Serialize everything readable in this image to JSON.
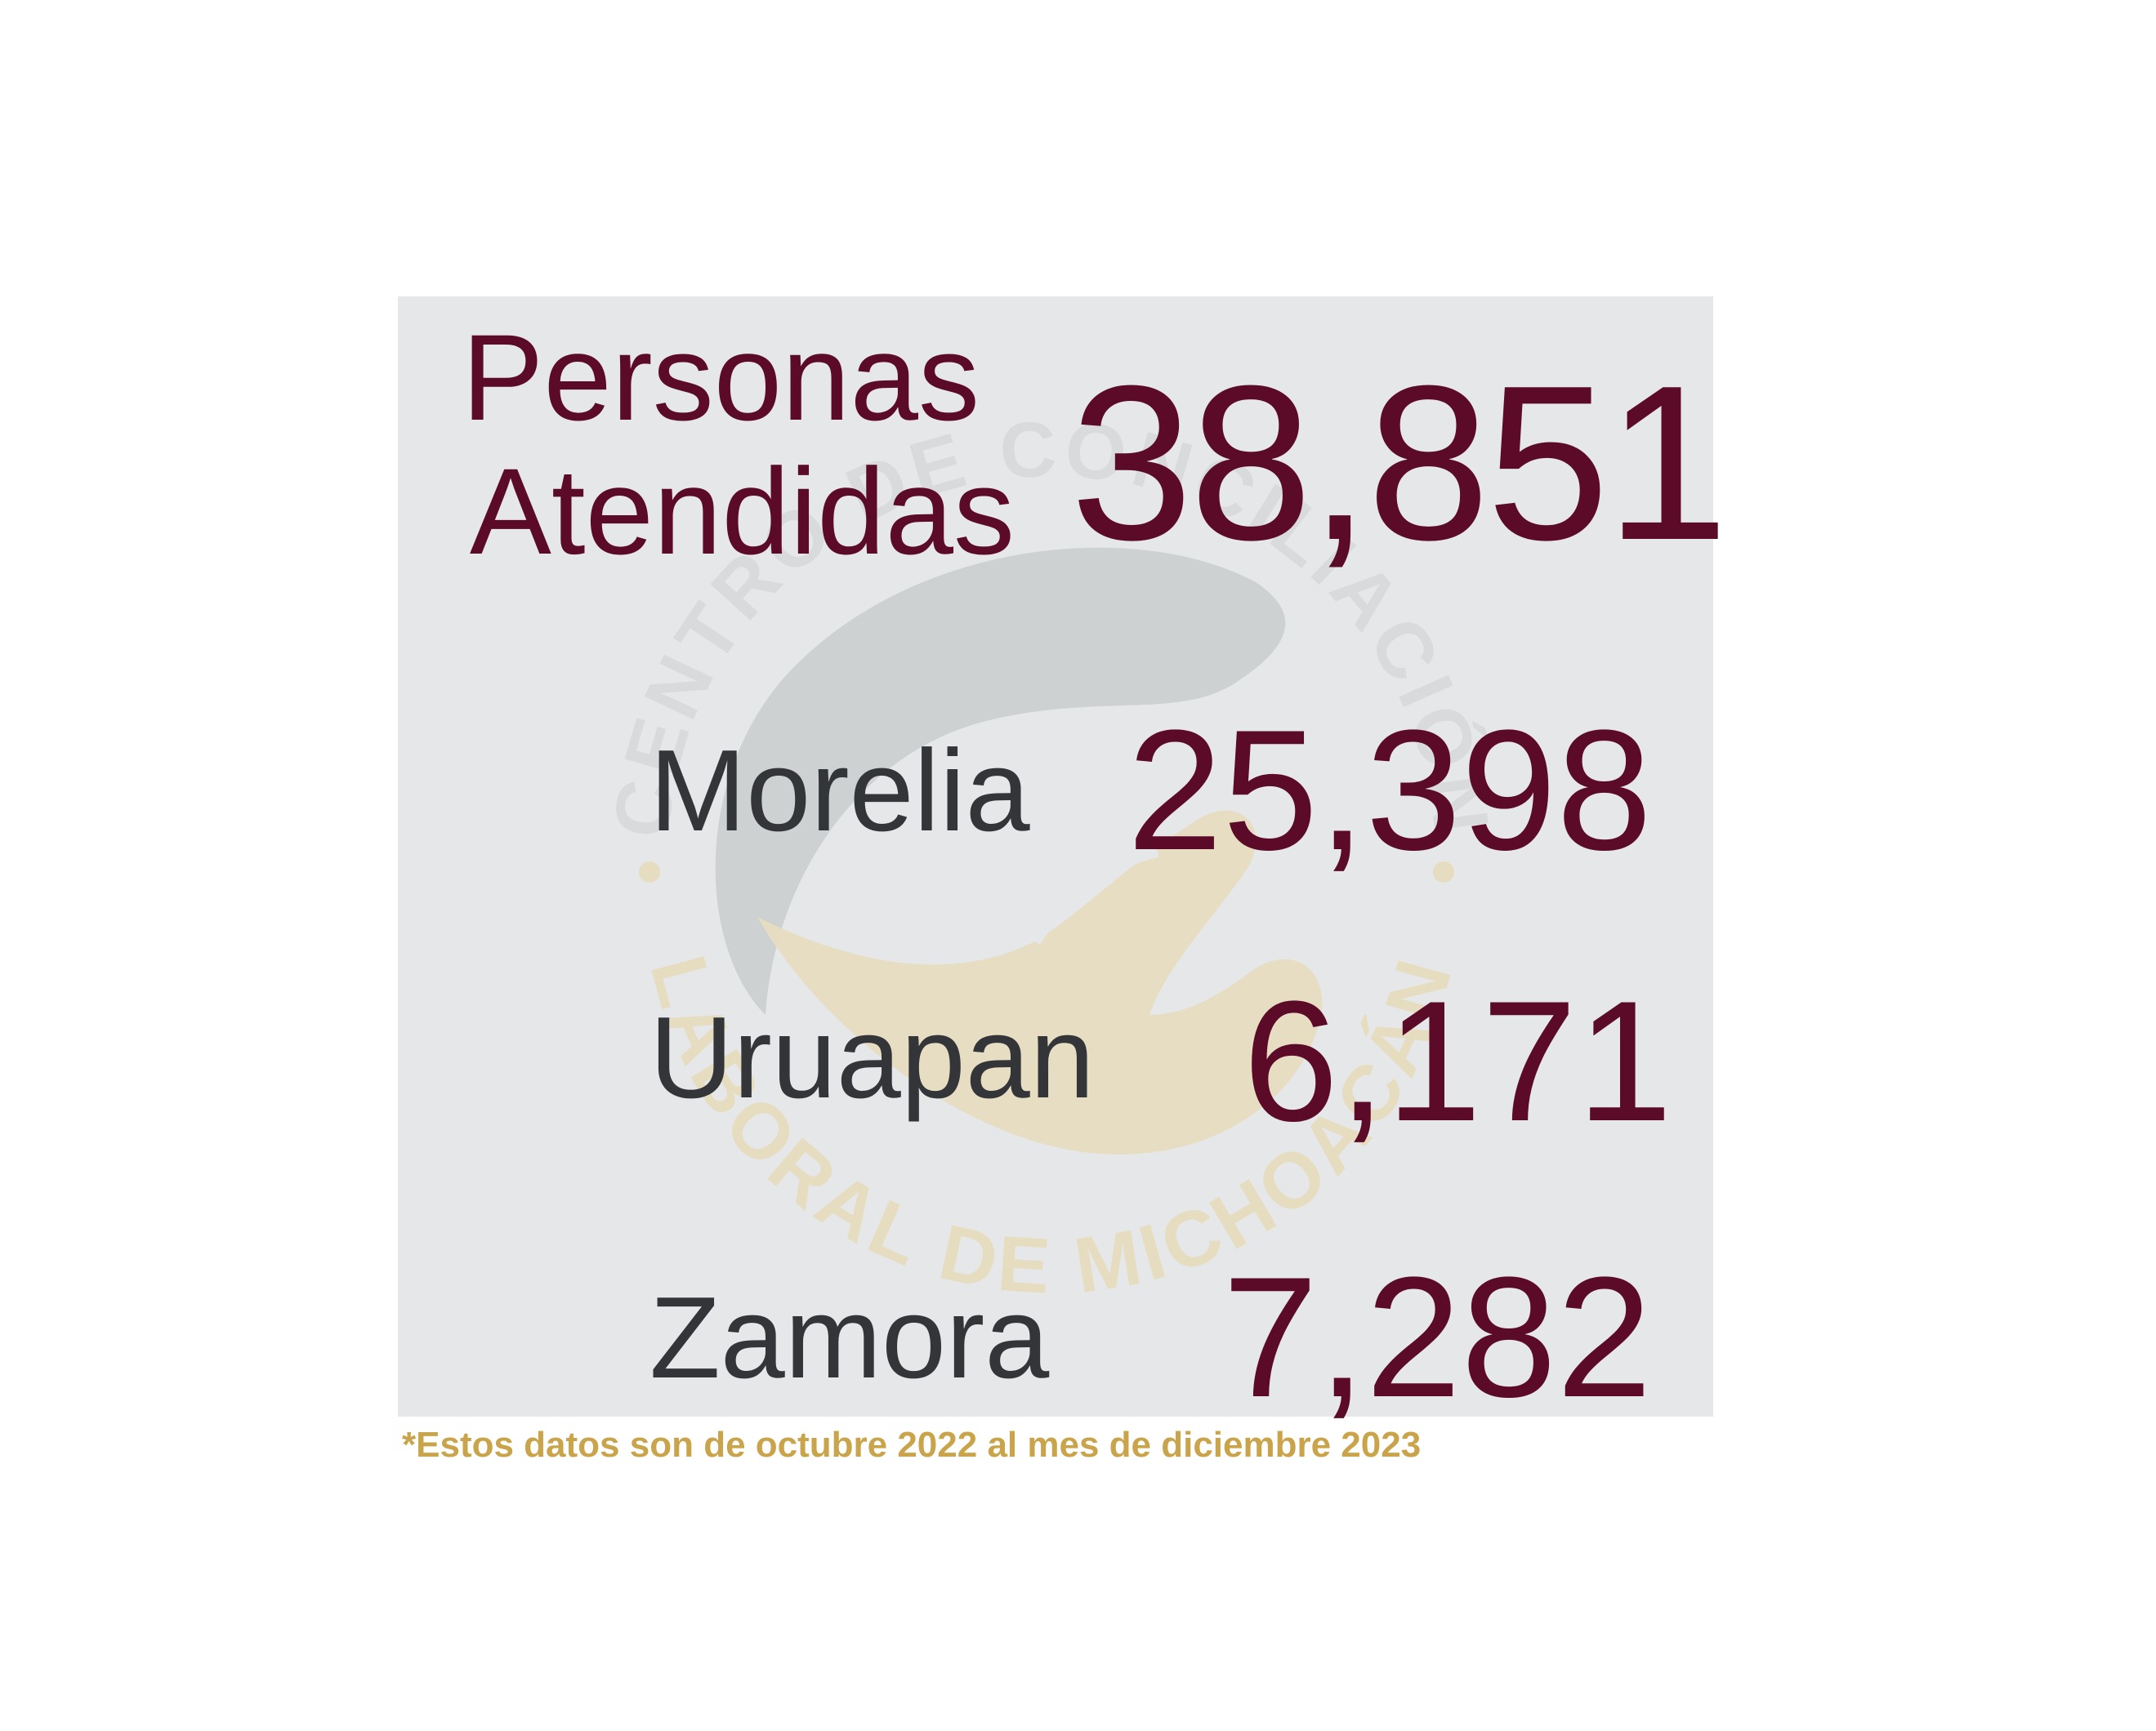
{
  "summary": {
    "label_line1": "Personas",
    "label_line2": "Atendidas",
    "total": "38,851"
  },
  "cities": [
    {
      "name": "Morelia",
      "value": "25,398"
    },
    {
      "name": "Uruapan",
      "value": "6,171"
    },
    {
      "name": "Zamora",
      "value": "7,282"
    }
  ],
  "watermark": {
    "top_text": "CENTRO DE CONCILIACIÓN",
    "bottom_text": "LABORAL DE MICHOACÁN"
  },
  "footnote": "*Estos datos son de octubre 2022 al mes de diciembre 2023",
  "colors": {
    "panel_bg": "#e5e7e8",
    "accent": "#5b0b28",
    "city_text": "#333538",
    "gold": "#c9a44a",
    "watermark_gray": "#c9cccd",
    "watermark_gold": "#e6dcc0"
  }
}
